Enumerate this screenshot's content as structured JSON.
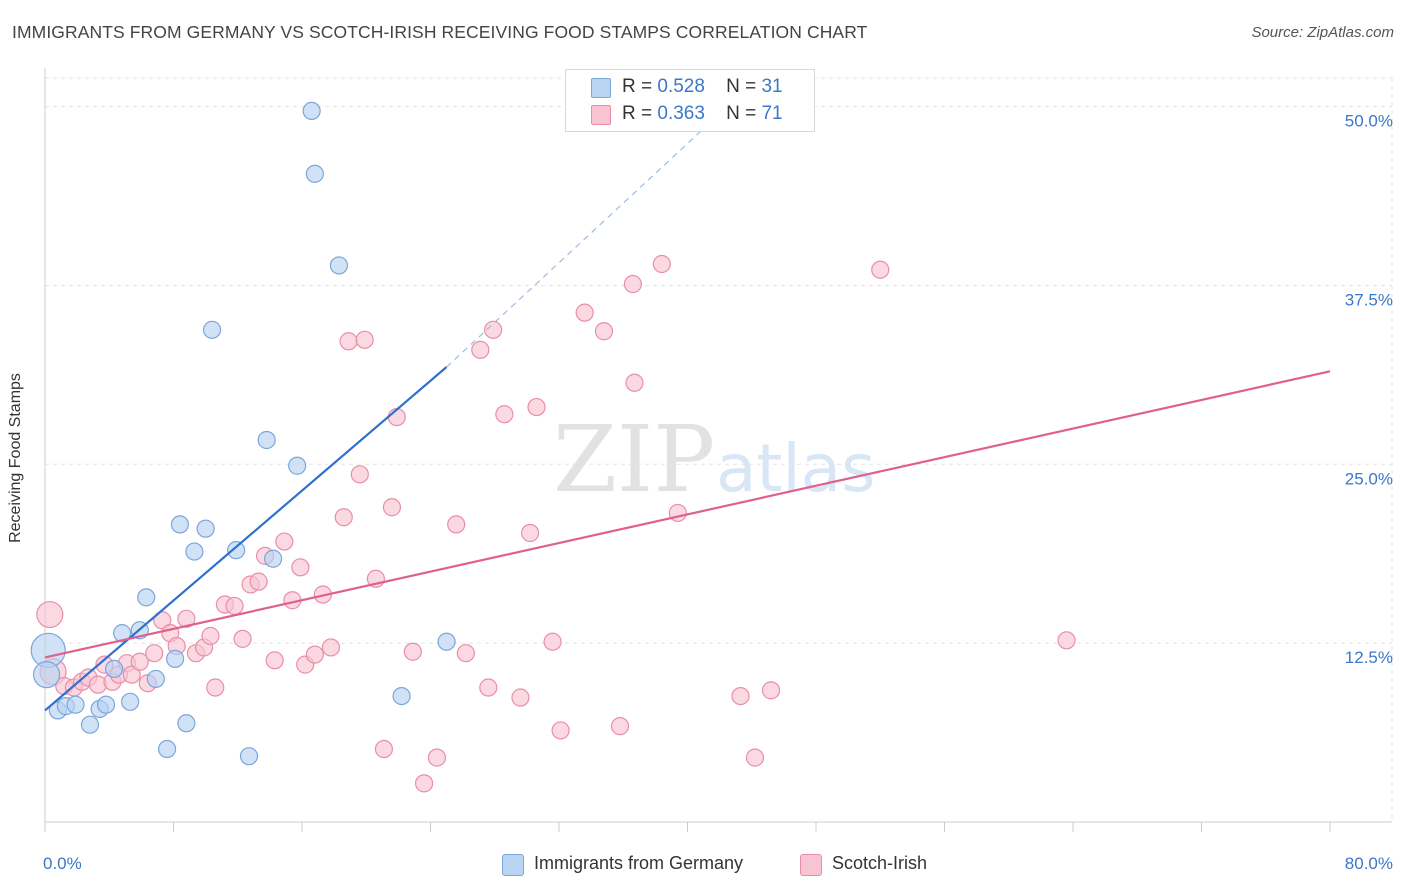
{
  "title": "IMMIGRANTS FROM GERMANY VS SCOTCH-IRISH RECEIVING FOOD STAMPS CORRELATION CHART",
  "source": "Source: ZipAtlas.com",
  "watermark": {
    "zip": "ZIP",
    "atlas": "atlas"
  },
  "colors": {
    "germany_fill": "#b9d3f3",
    "germany_stroke": "#7aa6db",
    "germany_line": "#2f6fd0",
    "scotch_fill": "#f8c4d4",
    "scotch_stroke": "#e98ea9",
    "scotch_line": "#e0608c",
    "axis_label": "#3a78c9"
  },
  "legend": {
    "r_label": "R =",
    "n_label": "N =",
    "germany": {
      "r": "0.528",
      "n": "31"
    },
    "scotch": {
      "r": "0.363",
      "n": "71"
    }
  },
  "chart_data": {
    "type": "scatter",
    "title": "IMMIGRANTS FROM GERMANY VS SCOTCH-IRISH RECEIVING FOOD STAMPS CORRELATION CHART",
    "xlabel": "",
    "ylabel": "Receiving Food Stamps",
    "xlim": [
      0,
      80
    ],
    "ylim": [
      0,
      52
    ],
    "x_tick_labels": [
      "0.0%",
      "80.0%"
    ],
    "y_ticks": [
      12.5,
      25.0,
      37.5,
      50.0
    ],
    "y_tick_labels": [
      "12.5%",
      "25.0%",
      "37.5%",
      "50.0%"
    ],
    "grid": true,
    "legend_position": "top-center",
    "series": [
      {
        "name": "Immigrants from Germany",
        "points": [
          [
            0.2,
            12.0
          ],
          [
            0.8,
            7.8
          ],
          [
            1.3,
            8.1
          ],
          [
            1.9,
            8.2
          ],
          [
            2.8,
            6.8
          ],
          [
            3.4,
            7.9
          ],
          [
            3.8,
            8.2
          ],
          [
            4.3,
            10.7
          ],
          [
            4.8,
            13.2
          ],
          [
            5.3,
            8.4
          ],
          [
            5.9,
            13.4
          ],
          [
            6.3,
            15.7
          ],
          [
            6.9,
            10.0
          ],
          [
            7.6,
            5.1
          ],
          [
            8.1,
            11.4
          ],
          [
            8.4,
            20.8
          ],
          [
            8.8,
            6.9
          ],
          [
            9.3,
            18.9
          ],
          [
            10.0,
            20.5
          ],
          [
            10.4,
            34.4
          ],
          [
            11.9,
            19.0
          ],
          [
            12.7,
            4.6
          ],
          [
            13.8,
            26.7
          ],
          [
            14.2,
            18.4
          ],
          [
            15.7,
            24.9
          ],
          [
            16.6,
            49.7
          ],
          [
            16.8,
            45.3
          ],
          [
            18.3,
            38.9
          ],
          [
            22.2,
            8.8
          ],
          [
            25.0,
            12.6
          ],
          [
            0.1,
            10.3
          ]
        ],
        "trend": {
          "x_solid": [
            0,
            25
          ],
          "y_solid": [
            7.8,
            31.8
          ],
          "x_dashed": [
            25,
            42
          ],
          "y_dashed": [
            31.8,
            49.5
          ]
        }
      },
      {
        "name": "Scotch-Irish",
        "points": [
          [
            0.3,
            14.5
          ],
          [
            0.5,
            10.5
          ],
          [
            1.2,
            9.5
          ],
          [
            1.8,
            9.4
          ],
          [
            2.3,
            9.8
          ],
          [
            2.7,
            10.1
          ],
          [
            3.3,
            9.6
          ],
          [
            3.7,
            11.0
          ],
          [
            4.2,
            9.8
          ],
          [
            4.6,
            10.3
          ],
          [
            5.1,
            11.1
          ],
          [
            5.4,
            10.3
          ],
          [
            5.9,
            11.2
          ],
          [
            6.4,
            9.7
          ],
          [
            6.8,
            11.8
          ],
          [
            7.3,
            14.1
          ],
          [
            7.8,
            13.2
          ],
          [
            8.2,
            12.3
          ],
          [
            8.8,
            14.2
          ],
          [
            9.4,
            11.8
          ],
          [
            9.9,
            12.2
          ],
          [
            10.3,
            13.0
          ],
          [
            10.6,
            9.4
          ],
          [
            11.2,
            15.2
          ],
          [
            11.8,
            15.1
          ],
          [
            12.3,
            12.8
          ],
          [
            12.8,
            16.6
          ],
          [
            13.3,
            16.8
          ],
          [
            13.7,
            18.6
          ],
          [
            14.3,
            11.3
          ],
          [
            14.9,
            19.6
          ],
          [
            15.4,
            15.5
          ],
          [
            15.9,
            17.8
          ],
          [
            16.2,
            11.0
          ],
          [
            16.8,
            11.7
          ],
          [
            17.3,
            15.9
          ],
          [
            17.8,
            12.2
          ],
          [
            18.6,
            21.3
          ],
          [
            18.9,
            33.6
          ],
          [
            19.6,
            24.3
          ],
          [
            19.9,
            33.7
          ],
          [
            20.6,
            17.0
          ],
          [
            21.1,
            5.1
          ],
          [
            21.6,
            22.0
          ],
          [
            21.9,
            28.3
          ],
          [
            22.9,
            11.9
          ],
          [
            23.6,
            2.7
          ],
          [
            24.4,
            4.5
          ],
          [
            25.6,
            20.8
          ],
          [
            26.2,
            11.8
          ],
          [
            27.1,
            33.0
          ],
          [
            27.6,
            9.4
          ],
          [
            27.9,
            34.4
          ],
          [
            28.6,
            28.5
          ],
          [
            29.6,
            8.7
          ],
          [
            30.2,
            20.2
          ],
          [
            30.6,
            29.0
          ],
          [
            31.6,
            12.6
          ],
          [
            32.1,
            6.4
          ],
          [
            33.6,
            35.6
          ],
          [
            34.8,
            34.3
          ],
          [
            35.8,
            6.7
          ],
          [
            36.6,
            37.6
          ],
          [
            36.7,
            30.7
          ],
          [
            38.4,
            39.0
          ],
          [
            39.4,
            21.6
          ],
          [
            43.3,
            8.8
          ],
          [
            44.2,
            4.5
          ],
          [
            45.2,
            9.2
          ],
          [
            52.0,
            38.6
          ],
          [
            63.6,
            12.7
          ]
        ],
        "trend": {
          "x": [
            0,
            80
          ],
          "y": [
            11.5,
            31.5
          ]
        }
      }
    ]
  }
}
